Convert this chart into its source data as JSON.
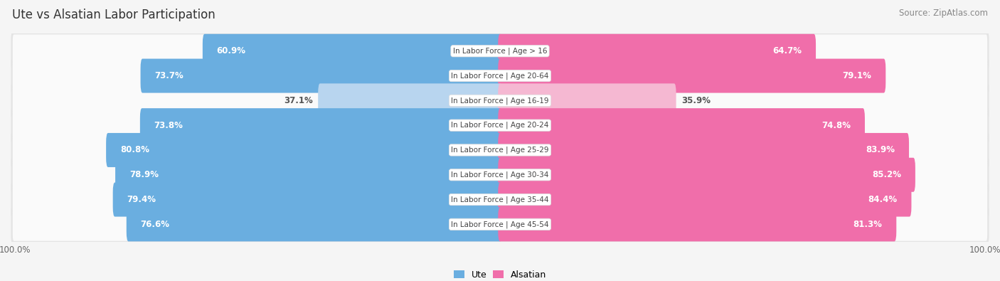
{
  "title": "Ute vs Alsatian Labor Participation",
  "source": "Source: ZipAtlas.com",
  "categories": [
    "In Labor Force | Age > 16",
    "In Labor Force | Age 20-64",
    "In Labor Force | Age 16-19",
    "In Labor Force | Age 20-24",
    "In Labor Force | Age 25-29",
    "In Labor Force | Age 30-34",
    "In Labor Force | Age 35-44",
    "In Labor Force | Age 45-54"
  ],
  "ute_values": [
    60.9,
    73.7,
    37.1,
    73.8,
    80.8,
    78.9,
    79.4,
    76.6
  ],
  "alsatian_values": [
    64.7,
    79.1,
    35.9,
    74.8,
    83.9,
    85.2,
    84.4,
    81.3
  ],
  "ute_color_strong": "#6aaee0",
  "ute_color_light": "#b8d5ef",
  "alsatian_color_strong": "#f06eaa",
  "alsatian_color_light": "#f5b8d2",
  "bg_color": "#f5f5f5",
  "row_bg_color": "#e4e4e4",
  "row_inner_bg": "#fafafa",
  "label_bg_color": "#ffffff",
  "max_value": 100.0,
  "title_fontsize": 12,
  "source_fontsize": 8.5,
  "bar_label_fontsize": 8.5,
  "cat_label_fontsize": 7.5,
  "legend_fontsize": 9,
  "axis_label_fontsize": 8.5
}
